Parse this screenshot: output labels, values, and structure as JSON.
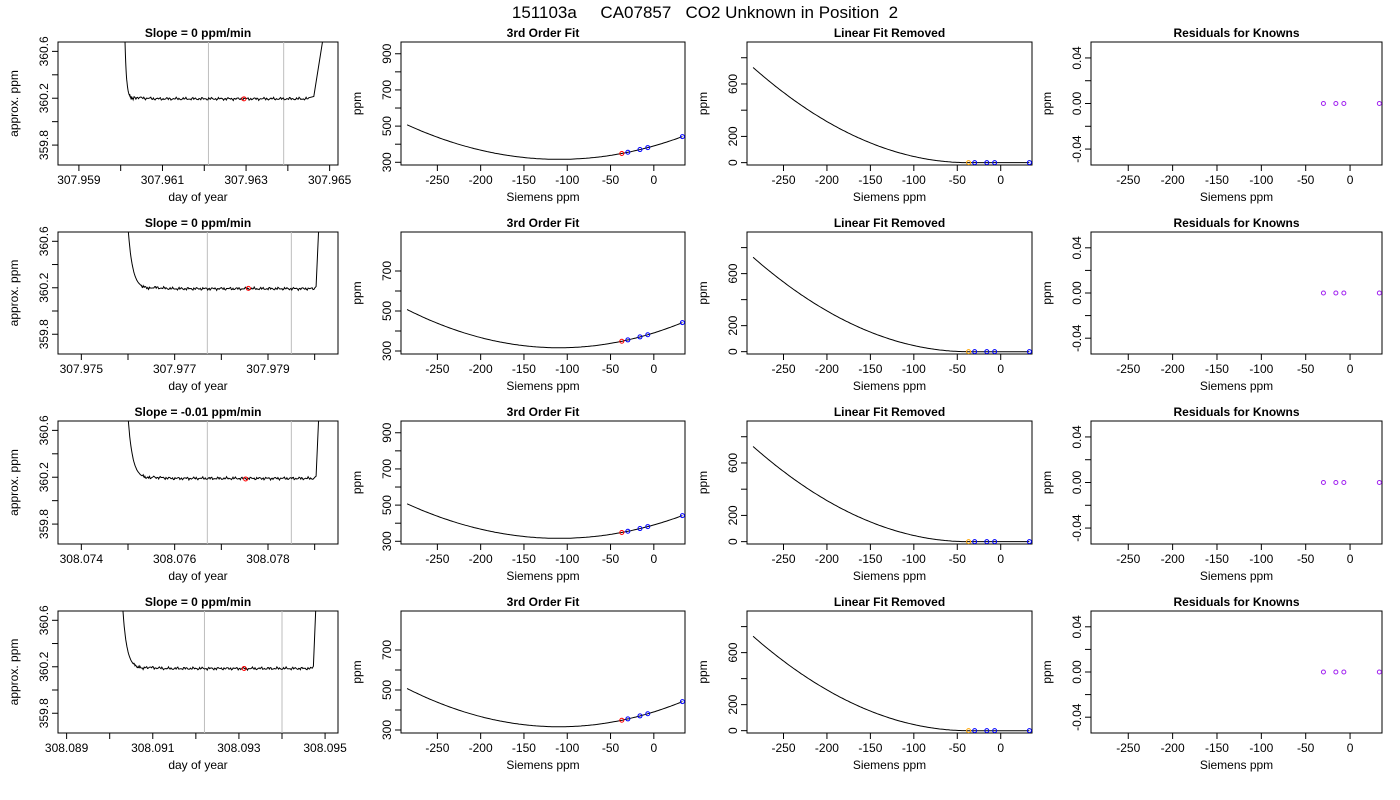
{
  "figure": {
    "title": "151103a     CA07857   CO2 Unknown in Position  2"
  },
  "rows": [
    {
      "slope_title": "Slope =  0  ppm/min",
      "ts": {
        "xlim": [
          307.9585,
          307.9652
        ],
        "ylim": [
          359.63,
          360.68
        ],
        "xticks": [
          307.959,
          307.96,
          307.961,
          307.962,
          307.963,
          307.964,
          307.965
        ],
        "xtick_labels": [
          "307.959",
          "",
          "307.961",
          "",
          "307.963",
          "",
          "307.965"
        ],
        "yticks": [
          359.8,
          360.0,
          360.2,
          360.4,
          360.6
        ],
        "ytick_labels": [
          "359.8",
          "",
          "360.2",
          "",
          "360.6"
        ],
        "vlines": [
          307.9621,
          307.9639
        ],
        "marker": {
          "x": 307.96295,
          "y": 360.195
        },
        "x_start": 307.9601,
        "x_flat": 307.9603,
        "x_end": 307.9645,
        "x_rise": 307.96462,
        "level": 360.195,
        "high": 360.72,
        "shoulder": 360.245
      },
      "fit": {
        "xlim": [
          -292,
          36
        ],
        "ylim": [
          285,
          965
        ],
        "yticks": [
          300,
          400,
          500,
          600,
          700,
          800,
          900
        ],
        "ytick_labels": [
          "300",
          "",
          "500",
          "",
          "700",
          "",
          "900"
        ],
        "curve": {
          "a": 0.0062,
          "b": 1.357,
          "c": 390.5,
          "x_from": -285,
          "x_to": 33
        },
        "knowns_x": [
          -30,
          -16,
          -7,
          33
        ],
        "unknown_x": [
          -37
        ]
      },
      "lin": {
        "xlim": [
          -292,
          36
        ],
        "ylim": [
          -18,
          920
        ],
        "yticks": [
          0,
          200,
          400,
          600,
          800
        ],
        "ytick_labels": [
          "0",
          "200",
          "",
          "600",
          ""
        ],
        "curve": {
          "a": 0.0062,
          "b": 1.357,
          "c": 0,
          "x_from": -285,
          "x_to": 33
        },
        "knowns_x": [
          -30,
          -16,
          -7,
          33
        ],
        "unknown_x": [
          -37
        ]
      },
      "res": {
        "xlim": [
          -292,
          36
        ],
        "ylim": [
          -0.054,
          0.054
        ],
        "yticks": [
          -0.04,
          -0.02,
          0.0,
          0.02,
          0.04
        ],
        "ytick_labels": [
          "-0.04",
          "",
          "0.00",
          "",
          "0.04"
        ],
        "knowns_x": [
          -30,
          -16,
          -7,
          33
        ],
        "knowns_y": [
          0,
          0,
          0,
          0
        ]
      }
    },
    {
      "slope_title": "Slope =  0  ppm/min",
      "ts": {
        "xlim": [
          307.9745,
          307.9805
        ],
        "ylim": [
          359.63,
          360.68
        ],
        "xticks": [
          307.975,
          307.976,
          307.977,
          307.978,
          307.979,
          307.98
        ],
        "xtick_labels": [
          "307.975",
          "",
          "307.977",
          "",
          "307.979",
          ""
        ],
        "yticks": [
          359.8,
          360.0,
          360.2,
          360.4,
          360.6
        ],
        "ytick_labels": [
          "359.8",
          "",
          "360.2",
          "",
          "360.6"
        ],
        "vlines": [
          307.9777,
          307.9795
        ],
        "marker": {
          "x": 307.97858,
          "y": 360.195
        },
        "x_start": 307.976,
        "x_flat": 307.9765,
        "x_end": 307.98,
        "x_rise": 307.98003,
        "level": 360.192,
        "high": 360.72,
        "shoulder": 360.24
      },
      "fit": {
        "xlim": [
          -292,
          36
        ],
        "ylim": [
          285,
          895
        ],
        "yticks": [
          300,
          400,
          500,
          600,
          700
        ],
        "ytick_labels": [
          "300",
          "",
          "500",
          "",
          "700"
        ],
        "curve": {
          "a": 0.0062,
          "b": 1.357,
          "c": 390.5,
          "x_from": -285,
          "x_to": 33
        },
        "knowns_x": [
          -30,
          -16,
          -7,
          33
        ],
        "unknown_x": [
          -37
        ]
      },
      "lin": {
        "xlim": [
          -292,
          36
        ],
        "ylim": [
          -18,
          920
        ],
        "yticks": [
          0,
          200,
          400,
          600,
          800
        ],
        "ytick_labels": [
          "0",
          "200",
          "",
          "600",
          ""
        ],
        "curve": {
          "a": 0.0062,
          "b": 1.357,
          "c": 0,
          "x_from": -285,
          "x_to": 33
        },
        "knowns_x": [
          -30,
          -16,
          -7,
          33
        ],
        "unknown_x": [
          -37
        ]
      },
      "res": {
        "xlim": [
          -292,
          36
        ],
        "ylim": [
          -0.054,
          0.054
        ],
        "yticks": [
          -0.04,
          -0.02,
          0.0,
          0.02,
          0.04
        ],
        "ytick_labels": [
          "-0.04",
          "",
          "0.00",
          "",
          "0.04"
        ],
        "knowns_x": [
          -30,
          -16,
          -7,
          33
        ],
        "knowns_y": [
          0,
          0,
          0,
          0
        ]
      }
    },
    {
      "slope_title": "Slope =  -0.01  ppm/min",
      "ts": {
        "xlim": [
          308.0735,
          308.0795
        ],
        "ylim": [
          359.63,
          360.68
        ],
        "xticks": [
          308.074,
          308.075,
          308.076,
          308.077,
          308.078,
          308.079
        ],
        "xtick_labels": [
          "308.074",
          "",
          "308.076",
          "",
          "308.078",
          ""
        ],
        "yticks": [
          359.8,
          360.0,
          360.2,
          360.4,
          360.6
        ],
        "ytick_labels": [
          "359.8",
          "",
          "360.2",
          "",
          "360.6"
        ],
        "vlines": [
          308.0767,
          308.0785
        ],
        "marker": {
          "x": 308.07752,
          "y": 360.185
        },
        "x_start": 308.075,
        "x_flat": 308.0755,
        "x_end": 308.079,
        "x_rise": 308.07903,
        "level": 360.19,
        "high": 360.72,
        "shoulder": 360.235
      },
      "fit": {
        "xlim": [
          -292,
          36
        ],
        "ylim": [
          285,
          965
        ],
        "yticks": [
          300,
          400,
          500,
          600,
          700,
          800,
          900
        ],
        "ytick_labels": [
          "300",
          "",
          "500",
          "",
          "700",
          "",
          "900"
        ],
        "curve": {
          "a": 0.0062,
          "b": 1.357,
          "c": 390.5,
          "x_from": -285,
          "x_to": 33
        },
        "knowns_x": [
          -30,
          -16,
          -7,
          33
        ],
        "unknown_x": [
          -37
        ]
      },
      "lin": {
        "xlim": [
          -292,
          36
        ],
        "ylim": [
          -18,
          920
        ],
        "yticks": [
          0,
          200,
          400,
          600,
          800
        ],
        "ytick_labels": [
          "0",
          "200",
          "",
          "600",
          ""
        ],
        "curve": {
          "a": 0.0062,
          "b": 1.357,
          "c": 0,
          "x_from": -285,
          "x_to": 33
        },
        "knowns_x": [
          -30,
          -16,
          -7,
          33
        ],
        "unknown_x": [
          -37
        ]
      },
      "res": {
        "xlim": [
          -292,
          36
        ],
        "ylim": [
          -0.054,
          0.054
        ],
        "yticks": [
          -0.04,
          -0.02,
          0.0,
          0.02,
          0.04
        ],
        "ytick_labels": [
          "-0.04",
          "",
          "0.00",
          "",
          "0.04"
        ],
        "knowns_x": [
          -30,
          -16,
          -7,
          33
        ],
        "knowns_y": [
          0,
          0,
          0,
          0
        ]
      }
    },
    {
      "slope_title": "Slope =  0  ppm/min",
      "ts": {
        "xlim": [
          308.0888,
          308.0953
        ],
        "ylim": [
          359.63,
          360.68
        ],
        "xticks": [
          308.089,
          308.09,
          308.091,
          308.092,
          308.093,
          308.094,
          308.095
        ],
        "xtick_labels": [
          "308.089",
          "",
          "308.091",
          "",
          "308.093",
          "",
          "308.095"
        ],
        "yticks": [
          359.8,
          360.0,
          360.2,
          360.4,
          360.6
        ],
        "ytick_labels": [
          "359.8",
          "",
          "360.2",
          "",
          "360.6"
        ],
        "vlines": [
          308.0922,
          308.094
        ],
        "marker": {
          "x": 308.09312,
          "y": 360.185
        },
        "x_start": 308.0903,
        "x_flat": 308.0908,
        "x_end": 308.0947,
        "x_rise": 308.09473,
        "level": 360.185,
        "high": 360.72,
        "shoulder": 360.235
      },
      "fit": {
        "xlim": [
          -292,
          36
        ],
        "ylim": [
          285,
          895
        ],
        "yticks": [
          300,
          400,
          500,
          600,
          700
        ],
        "ytick_labels": [
          "300",
          "",
          "500",
          "",
          "700"
        ],
        "curve": {
          "a": 0.0062,
          "b": 1.357,
          "c": 390.5,
          "x_from": -285,
          "x_to": 33
        },
        "knowns_x": [
          -30,
          -16,
          -7,
          33
        ],
        "unknown_x": [
          -37
        ]
      },
      "lin": {
        "xlim": [
          -292,
          36
        ],
        "ylim": [
          -18,
          920
        ],
        "yticks": [
          0,
          200,
          400,
          600,
          800
        ],
        "ytick_labels": [
          "0",
          "200",
          "",
          "600",
          ""
        ],
        "curve": {
          "a": 0.0062,
          "b": 1.357,
          "c": 0,
          "x_from": -285,
          "x_to": 33
        },
        "knowns_x": [
          -30,
          -16,
          -7,
          33
        ],
        "unknown_x": [
          -37
        ]
      },
      "res": {
        "xlim": [
          -292,
          36
        ],
        "ylim": [
          -0.054,
          0.054
        ],
        "yticks": [
          -0.04,
          -0.02,
          0.0,
          0.02,
          0.04
        ],
        "ytick_labels": [
          "-0.04",
          "",
          "0.00",
          "",
          "0.04"
        ],
        "knowns_x": [
          -30,
          -16,
          -7,
          33
        ],
        "knowns_y": [
          0,
          0,
          0,
          0
        ]
      }
    }
  ],
  "labels": {
    "ts_xlabel": "day of year",
    "ts_ylabel": "approx. ppm",
    "fit_title": "3rd Order Fit",
    "lin_title": "Linear Fit Removed",
    "res_title": "Residuals for Knowns",
    "siemens_xlabel": "Siemens ppm",
    "ppm_ylabel": "ppm"
  },
  "siemens_xticks": [
    -250,
    -200,
    -150,
    -100,
    -50,
    0
  ],
  "siemens_xtick_labels": [
    "-250",
    "-200",
    "-150",
    "-100",
    "-50",
    "0"
  ],
  "colors": {
    "line": "#000000",
    "vline": "#bebebe",
    "unknown_marker": "#ff0000",
    "lin_unknown_marker": "#ffa500",
    "known_marker": "#0000ff",
    "residual_marker": "#a020f0"
  },
  "chart_data": [
    {
      "type": "line",
      "title": "Slope =  0  ppm/min",
      "xlabel": "day of year",
      "ylabel": "approx. ppm",
      "xlim": [
        307.9585,
        307.9652
      ],
      "ylim": [
        359.63,
        360.68
      ],
      "series": [
        {
          "values": [
            360.195
          ]
        }
      ]
    },
    {
      "type": "line",
      "title": "3rd Order Fit",
      "xlabel": "Siemens ppm",
      "ylabel": "ppm",
      "x": [
        -37,
        -30,
        -16,
        -7,
        33
      ],
      "series": [
        {
          "values": [
            348,
            357,
            370,
            381,
            442
          ]
        }
      ]
    },
    {
      "type": "line",
      "title": "Linear Fit Removed",
      "xlabel": "Siemens ppm",
      "ylabel": "ppm",
      "x": [
        -37,
        -30,
        -16,
        -7,
        33
      ],
      "series": [
        {
          "values": [
            0,
            0,
            0,
            0,
            0
          ]
        }
      ]
    },
    {
      "type": "scatter",
      "title": "Residuals for Knowns",
      "xlabel": "Siemens ppm",
      "ylabel": "ppm",
      "x": [
        -30,
        -16,
        -7,
        33
      ],
      "series": [
        {
          "values": [
            0,
            0,
            0,
            0
          ]
        }
      ]
    }
  ]
}
